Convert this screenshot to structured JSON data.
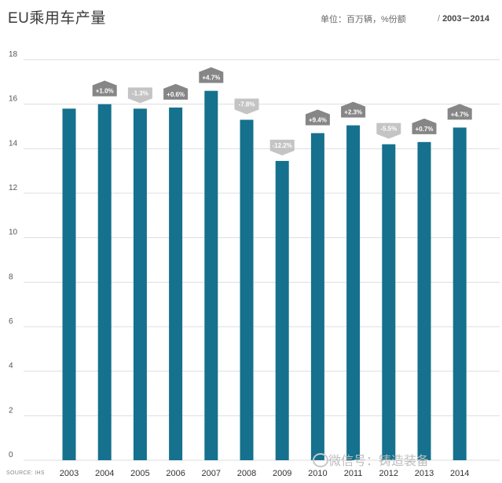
{
  "title": "EU乘用车产量",
  "unit": "单位：百万辆，%份额",
  "year_range": "2003－2014",
  "source": "SOURCE: IHS",
  "watermark": "微信号：铸造装备",
  "colors": {
    "bar": "#15718d",
    "badge_up": "#868686",
    "badge_down": "#c4c4c4",
    "grid": "#dddddd"
  },
  "chart_data": {
    "type": "bar",
    "categories": [
      "2003",
      "2004",
      "2005",
      "2006",
      "2007",
      "2008",
      "2009",
      "2010",
      "2011",
      "2012",
      "2013",
      "2014"
    ],
    "values": [
      15.8,
      16.0,
      15.8,
      15.85,
      16.6,
      15.3,
      13.45,
      14.7,
      15.05,
      14.2,
      14.3,
      14.95
    ],
    "annotations": [
      "",
      "+1.0%",
      "-1.3%",
      "+0.6%",
      "+4.7%",
      "-7.8%",
      "-12.2%",
      "+9.4%",
      "+2.3%",
      "-5.5%",
      "+0.7%",
      "+4.7%"
    ],
    "yticks": [
      0,
      2,
      4,
      6,
      8,
      10,
      12,
      14,
      16,
      18
    ],
    "ylim": [
      0,
      18
    ],
    "grid": true
  }
}
